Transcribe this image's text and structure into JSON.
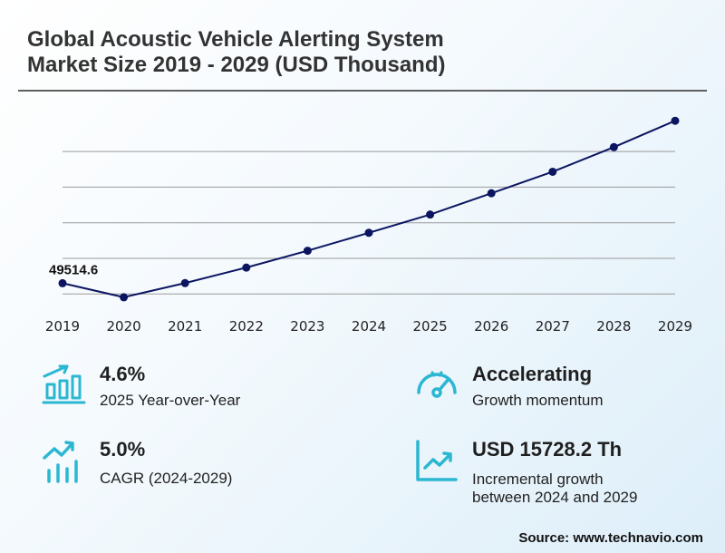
{
  "title": {
    "line1": "Global Acoustic Vehicle Alerting System",
    "line2": "Market Size 2019 - 2029 (USD Thousand)"
  },
  "chart_data": {
    "type": "line",
    "title": "Global Acoustic Vehicle Alerting System Market Size 2019 - 2029 (USD Thousand)",
    "x": [
      "2019",
      "2020",
      "2021",
      "2022",
      "2023",
      "2024",
      "2025",
      "2026",
      "2027",
      "2028",
      "2029"
    ],
    "series": [
      {
        "values": [
          49514.6,
          47540,
          49530,
          51710,
          54070,
          56590,
          59150,
          62140,
          65160,
          68620,
          72320
        ]
      }
    ],
    "annotations": [
      {
        "x": "2019",
        "label": "49514.6"
      }
    ],
    "ylim": [
      46000,
      74000
    ],
    "grid": true,
    "y_axis_labels_shown": false,
    "colors": {
      "line": "#0c1560",
      "marker": "#0c1560",
      "grid": "#9a9a9a",
      "icon": "#2bb7d1"
    }
  },
  "stats": [
    {
      "value": "4.6%",
      "desc": "2025 Year-over-Year",
      "icon": "bar-growth-icon"
    },
    {
      "value": "Accelerating",
      "desc": "Growth momentum",
      "icon": "speedometer-icon"
    },
    {
      "value": "5.0%",
      "desc": "CAGR (2024-2029)",
      "icon": "trend-bars-icon"
    },
    {
      "value": "USD 15728.2 Th",
      "desc_line1": "Incremental growth",
      "desc_line2": "between 2024 and 2029",
      "icon": "line-chart-icon"
    }
  ],
  "source": "Source: www.technavio.com"
}
